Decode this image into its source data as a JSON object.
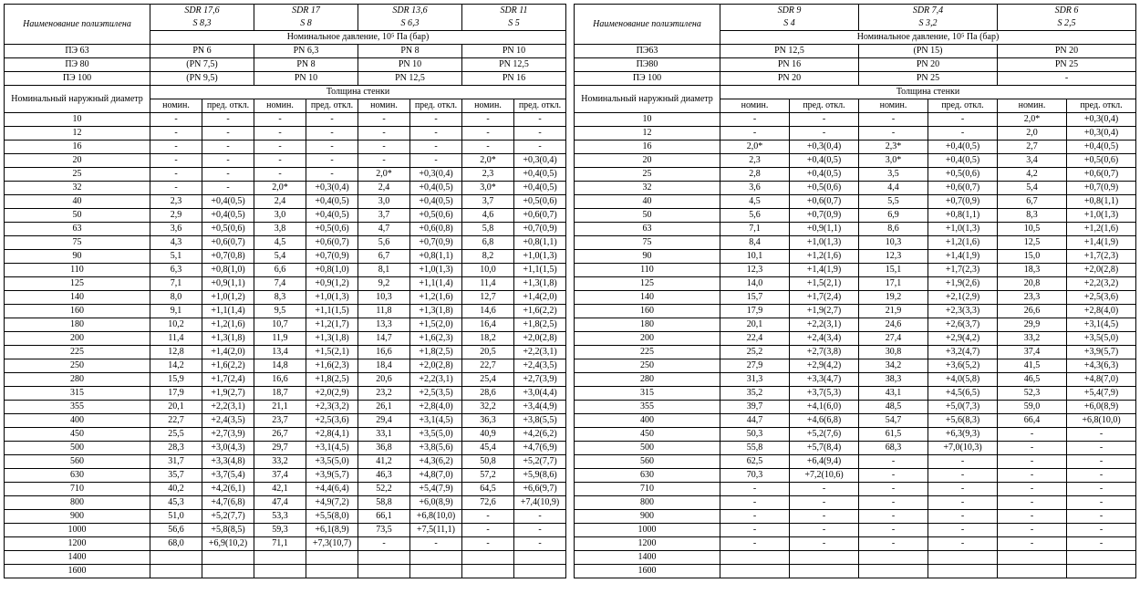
{
  "left": {
    "name_header": "Наименование полиэтилена",
    "nominal_pressure": "Номинальное давление, 10⁵ Па (бар)",
    "outer_diameter": "Номинальный наружный диаметр",
    "wall_thickness": "Толщина стенки",
    "nom": "номин.",
    "dev": "пред. откл.",
    "sdr": [
      {
        "sdr": "SDR 17,6",
        "s": "S 8,3"
      },
      {
        "sdr": "SDR 17",
        "s": "S 8"
      },
      {
        "sdr": "SDR 13,6",
        "s": "S 6,3"
      },
      {
        "sdr": "SDR 11",
        "s": "S 5"
      }
    ],
    "pe": [
      {
        "label": "ПЭ 63",
        "vals": [
          "PN 6",
          "PN 6,3",
          "PN 8",
          "PN 10"
        ]
      },
      {
        "label": "ПЭ 80",
        "vals": [
          "(PN 7,5)",
          "PN 8",
          "PN 10",
          "PN 12,5"
        ]
      },
      {
        "label": "ПЭ 100",
        "vals": [
          "(PN 9,5)",
          "PN 10",
          "PN 12,5",
          "PN 16"
        ]
      }
    ],
    "rows": [
      {
        "d": "10",
        "c": [
          "-",
          "-",
          "-",
          "-",
          "-",
          "-",
          "-",
          "-"
        ]
      },
      {
        "d": "12",
        "c": [
          "-",
          "-",
          "-",
          "-",
          "-",
          "-",
          "-",
          "-"
        ]
      },
      {
        "d": "16",
        "c": [
          "-",
          "-",
          "-",
          "-",
          "-",
          "-",
          "-",
          "-"
        ]
      },
      {
        "d": "20",
        "c": [
          "-",
          "-",
          "-",
          "-",
          "-",
          "-",
          "2,0*",
          "+0,3(0,4)"
        ]
      },
      {
        "d": "25",
        "c": [
          "-",
          "-",
          "-",
          "-",
          "2,0*",
          "+0,3(0,4)",
          "2,3",
          "+0,4(0,5)"
        ]
      },
      {
        "d": "32",
        "c": [
          "-",
          "-",
          "2,0*",
          "+0,3(0,4)",
          "2,4",
          "+0,4(0,5)",
          "3,0*",
          "+0,4(0,5)"
        ]
      },
      {
        "d": "40",
        "c": [
          "2,3",
          "+0,4(0,5)",
          "2,4",
          "+0,4(0,5)",
          "3,0",
          "+0,4(0,5)",
          "3,7",
          "+0,5(0,6)"
        ]
      },
      {
        "d": "50",
        "c": [
          "2,9",
          "+0,4(0,5)",
          "3,0",
          "+0,4(0,5)",
          "3,7",
          "+0,5(0,6)",
          "4,6",
          "+0,6(0,7)"
        ]
      },
      {
        "d": "63",
        "c": [
          "3,6",
          "+0,5(0,6)",
          "3,8",
          "+0,5(0,6)",
          "4,7",
          "+0,6(0,8)",
          "5,8",
          "+0,7(0,9)"
        ]
      },
      {
        "d": "75",
        "c": [
          "4,3",
          "+0,6(0,7)",
          "4,5",
          "+0,6(0,7)",
          "5,6",
          "+0,7(0,9)",
          "6,8",
          "+0,8(1,1)"
        ]
      },
      {
        "d": "90",
        "c": [
          "5,1",
          "+0,7(0,8)",
          "5,4",
          "+0,7(0,9)",
          "6,7",
          "+0,8(1,1)",
          "8,2",
          "+1,0(1,3)"
        ]
      },
      {
        "d": "110",
        "c": [
          "6,3",
          "+0,8(1,0)",
          "6,6",
          "+0,8(1,0)",
          "8,1",
          "+1,0(1,3)",
          "10,0",
          "+1,1(1,5)"
        ]
      },
      {
        "d": "125",
        "c": [
          "7,1",
          "+0,9(1,1)",
          "7,4",
          "+0,9(1,2)",
          "9,2",
          "+1,1(1,4)",
          "11,4",
          "+1,3(1,8)"
        ]
      },
      {
        "d": "140",
        "c": [
          "8,0",
          "+1,0(1,2)",
          "8,3",
          "+1,0(1,3)",
          "10,3",
          "+1,2(1,6)",
          "12,7",
          "+1,4(2,0)"
        ]
      },
      {
        "d": "160",
        "c": [
          "9,1",
          "+1,1(1,4)",
          "9,5",
          "+1,1(1,5)",
          "11,8",
          "+1,3(1,8)",
          "14,6",
          "+1,6(2,2)"
        ]
      },
      {
        "d": "180",
        "c": [
          "10,2",
          "+1,2(1,6)",
          "10,7",
          "+1,2(1,7)",
          "13,3",
          "+1,5(2,0)",
          "16,4",
          "+1,8(2,5)"
        ]
      },
      {
        "d": "200",
        "c": [
          "11,4",
          "+1,3(1,8)",
          "11,9",
          "+1,3(1,8)",
          "14,7",
          "+1,6(2,3)",
          "18,2",
          "+2,0(2,8)"
        ]
      },
      {
        "d": "225",
        "c": [
          "12,8",
          "+1,4(2,0)",
          "13,4",
          "+1,5(2,1)",
          "16,6",
          "+1,8(2,5)",
          "20,5",
          "+2,2(3,1)"
        ]
      },
      {
        "d": "250",
        "c": [
          "14,2",
          "+1,6(2,2)",
          "14,8",
          "+1,6(2,3)",
          "18,4",
          "+2,0(2,8)",
          "22,7",
          "+2,4(3,5)"
        ]
      },
      {
        "d": "280",
        "c": [
          "15,9",
          "+1,7(2,4)",
          "16,6",
          "+1,8(2,5)",
          "20,6",
          "+2,2(3,1)",
          "25,4",
          "+2,7(3,9)"
        ]
      },
      {
        "d": "315",
        "c": [
          "17,9",
          "+1,9(2,7)",
          "18,7",
          "+2,0(2,9)",
          "23,2",
          "+2,5(3,5)",
          "28,6",
          "+3,0(4,4)"
        ]
      },
      {
        "d": "355",
        "c": [
          "20,1",
          "+2,2(3,1)",
          "21,1",
          "+2,3(3,2)",
          "26,1",
          "+2,8(4,0)",
          "32,2",
          "+3,4(4,9)"
        ]
      },
      {
        "d": "400",
        "c": [
          "22,7",
          "+2,4(3,5)",
          "23,7",
          "+2,5(3,6)",
          "29,4",
          "+3,1(4,5)",
          "36,3",
          "+3,8(5,5)"
        ]
      },
      {
        "d": "450",
        "c": [
          "25,5",
          "+2,7(3,9)",
          "26,7",
          "+2,8(4,1)",
          "33,1",
          "+3,5(5,0)",
          "40,9",
          "+4,2(6,2)"
        ]
      },
      {
        "d": "500",
        "c": [
          "28,3",
          "+3,0(4,3)",
          "29,7",
          "+3,1(4,5)",
          "36,8",
          "+3,8(5,6)",
          "45,4",
          "+4,7(6,9)"
        ]
      },
      {
        "d": "560",
        "c": [
          "31,7",
          "+3,3(4,8)",
          "33,2",
          "+3,5(5,0)",
          "41,2",
          "+4,3(6,2)",
          "50,8",
          "+5,2(7,7)"
        ]
      },
      {
        "d": "630",
        "c": [
          "35,7",
          "+3,7(5,4)",
          "37,4",
          "+3,9(5,7)",
          "46,3",
          "+4,8(7,0)",
          "57,2",
          "+5,9(8,6)"
        ]
      },
      {
        "d": "710",
        "c": [
          "40,2",
          "+4,2(6,1)",
          "42,1",
          "+4,4(6,4)",
          "52,2",
          "+5,4(7,9)",
          "64,5",
          "+6,6(9,7)"
        ]
      },
      {
        "d": "800",
        "c": [
          "45,3",
          "+4,7(6,8)",
          "47,4",
          "+4,9(7,2)",
          "58,8",
          "+6,0(8,9)",
          "72,6",
          "+7,4(10,9)"
        ]
      },
      {
        "d": "900",
        "c": [
          "51,0",
          "+5,2(7,7)",
          "53,3",
          "+5,5(8,0)",
          "66,1",
          "+6,8(10,0)",
          "-",
          "-"
        ]
      },
      {
        "d": "1000",
        "c": [
          "56,6",
          "+5,8(8,5)",
          "59,3",
          "+6,1(8,9)",
          "73,5",
          "+7,5(11,1)",
          "-",
          "-"
        ]
      },
      {
        "d": "1200",
        "c": [
          "68,0",
          "+6,9(10,2)",
          "71,1",
          "+7,3(10,7)",
          "-",
          "-",
          "-",
          "-"
        ]
      },
      {
        "d": "1400",
        "c": [
          "",
          "",
          "",
          "",
          "",
          "",
          "",
          ""
        ]
      },
      {
        "d": "1600",
        "c": [
          "",
          "",
          "",
          "",
          "",
          "",
          "",
          ""
        ]
      }
    ]
  },
  "right": {
    "name_header": "Наименование полиэтилена",
    "nominal_pressure": "Номинальное давление, 10⁵ Па (бар)",
    "outer_diameter": "Номинальный наружный диаметр",
    "wall_thickness": "Толщина стенки",
    "nom": "номин.",
    "dev": "пред. откл.",
    "sdr": [
      {
        "sdr": "SDR 9",
        "s": "S 4"
      },
      {
        "sdr": "SDR 7,4",
        "s": "S 3,2"
      },
      {
        "sdr": "SDR 6",
        "s": "S 2,5"
      }
    ],
    "pe": [
      {
        "label": "ПЭ63",
        "vals": [
          "PN 12,5",
          "(PN 15)",
          "PN 20"
        ]
      },
      {
        "label": "ПЭ80",
        "vals": [
          "PN 16",
          "PN 20",
          "PN 25"
        ]
      },
      {
        "label": "ПЭ 100",
        "vals": [
          "PN 20",
          "PN 25",
          "-"
        ]
      }
    ],
    "rows": [
      {
        "d": "10",
        "c": [
          "-",
          "-",
          "-",
          "-",
          "2,0*",
          "+0,3(0,4)"
        ]
      },
      {
        "d": "12",
        "c": [
          "-",
          "-",
          "-",
          "-",
          "2,0",
          "+0,3(0,4)"
        ]
      },
      {
        "d": "16",
        "c": [
          "2,0*",
          "+0,3(0,4)",
          "2,3*",
          "+0,4(0,5)",
          "2,7",
          "+0,4(0,5)"
        ]
      },
      {
        "d": "20",
        "c": [
          "2,3",
          "+0,4(0,5)",
          "3,0*",
          "+0,4(0,5)",
          "3,4",
          "+0,5(0,6)"
        ]
      },
      {
        "d": "25",
        "c": [
          "2,8",
          "+0,4(0,5)",
          "3,5",
          "+0,5(0,6)",
          "4,2",
          "+0,6(0,7)"
        ]
      },
      {
        "d": "32",
        "c": [
          "3,6",
          "+0,5(0,6)",
          "4,4",
          "+0,6(0,7)",
          "5,4",
          "+0,7(0,9)"
        ]
      },
      {
        "d": "40",
        "c": [
          "4,5",
          "+0,6(0,7)",
          "5,5",
          "+0,7(0,9)",
          "6,7",
          "+0,8(1,1)"
        ]
      },
      {
        "d": "50",
        "c": [
          "5,6",
          "+0,7(0,9)",
          "6,9",
          "+0,8(1,1)",
          "8,3",
          "+1,0(1,3)"
        ]
      },
      {
        "d": "63",
        "c": [
          "7,1",
          "+0,9(1,1)",
          "8,6",
          "+1,0(1,3)",
          "10,5",
          "+1,2(1,6)"
        ]
      },
      {
        "d": "75",
        "c": [
          "8,4",
          "+1,0(1,3)",
          "10,3",
          "+1,2(1,6)",
          "12,5",
          "+1,4(1,9)"
        ]
      },
      {
        "d": "90",
        "c": [
          "10,1",
          "+1,2(1,6)",
          "12,3",
          "+1,4(1,9)",
          "15,0",
          "+1,7(2,3)"
        ]
      },
      {
        "d": "110",
        "c": [
          "12,3",
          "+1,4(1,9)",
          "15,1",
          "+1,7(2,3)",
          "18,3",
          "+2,0(2,8)"
        ]
      },
      {
        "d": "125",
        "c": [
          "14,0",
          "+1,5(2,1)",
          "17,1",
          "+1,9(2,6)",
          "20,8",
          "+2,2(3,2)"
        ]
      },
      {
        "d": "140",
        "c": [
          "15,7",
          "+1,7(2,4)",
          "19,2",
          "+2,1(2,9)",
          "23,3",
          "+2,5(3,6)"
        ]
      },
      {
        "d": "160",
        "c": [
          "17,9",
          "+1,9(2,7)",
          "21,9",
          "+2,3(3,3)",
          "26,6",
          "+2,8(4,0)"
        ]
      },
      {
        "d": "180",
        "c": [
          "20,1",
          "+2,2(3,1)",
          "24,6",
          "+2,6(3,7)",
          "29,9",
          "+3,1(4,5)"
        ]
      },
      {
        "d": "200",
        "c": [
          "22,4",
          "+2,4(3,4)",
          "27,4",
          "+2,9(4,2)",
          "33,2",
          "+3,5(5,0)"
        ]
      },
      {
        "d": "225",
        "c": [
          "25,2",
          "+2,7(3,8)",
          "30,8",
          "+3,2(4,7)",
          "37,4",
          "+3,9(5,7)"
        ]
      },
      {
        "d": "250",
        "c": [
          "27,9",
          "+2,9(4,2)",
          "34,2",
          "+3,6(5,2)",
          "41,5",
          "+4,3(6,3)"
        ]
      },
      {
        "d": "280",
        "c": [
          "31,3",
          "+3,3(4,7)",
          "38,3",
          "+4,0(5,8)",
          "46,5",
          "+4,8(7,0)"
        ]
      },
      {
        "d": "315",
        "c": [
          "35,2",
          "+3,7(5,3)",
          "43,1",
          "+4,5(6,5)",
          "52,3",
          "+5,4(7,9)"
        ]
      },
      {
        "d": "355",
        "c": [
          "39,7",
          "+4,1(6,0)",
          "48,5",
          "+5,0(7,3)",
          "59,0",
          "+6,0(8,9)"
        ]
      },
      {
        "d": "400",
        "c": [
          "44,7",
          "+4,6(6,8)",
          "54,7",
          "+5,6(8,3)",
          "66,4",
          "+6,8(10,0)"
        ]
      },
      {
        "d": "450",
        "c": [
          "50,3",
          "+5,2(7,6)",
          "61,5",
          "+6,3(9,3)",
          "-",
          "-"
        ]
      },
      {
        "d": "500",
        "c": [
          "55,8",
          "+5,7(8,4)",
          "68,3",
          "+7,0(10,3)",
          "-",
          "-"
        ]
      },
      {
        "d": "560",
        "c": [
          "62,5",
          "+6,4(9,4)",
          "-",
          "-",
          "-",
          "-"
        ]
      },
      {
        "d": "630",
        "c": [
          "70,3",
          "+7,2(10,6)",
          "-",
          "-",
          "-",
          "-"
        ]
      },
      {
        "d": "710",
        "c": [
          "-",
          "-",
          "-",
          "-",
          "-",
          "-"
        ]
      },
      {
        "d": "800",
        "c": [
          "-",
          "-",
          "-",
          "-",
          "-",
          "-"
        ]
      },
      {
        "d": "900",
        "c": [
          "-",
          "-",
          "-",
          "-",
          "-",
          "-"
        ]
      },
      {
        "d": "1000",
        "c": [
          "-",
          "-",
          "-",
          "-",
          "-",
          "-"
        ]
      },
      {
        "d": "1200",
        "c": [
          "-",
          "-",
          "-",
          "-",
          "-",
          "-"
        ]
      },
      {
        "d": "1400",
        "c": [
          "",
          "",
          "",
          "",
          "",
          ""
        ]
      },
      {
        "d": "1600",
        "c": [
          "",
          "",
          "",
          "",
          "",
          ""
        ]
      }
    ]
  }
}
